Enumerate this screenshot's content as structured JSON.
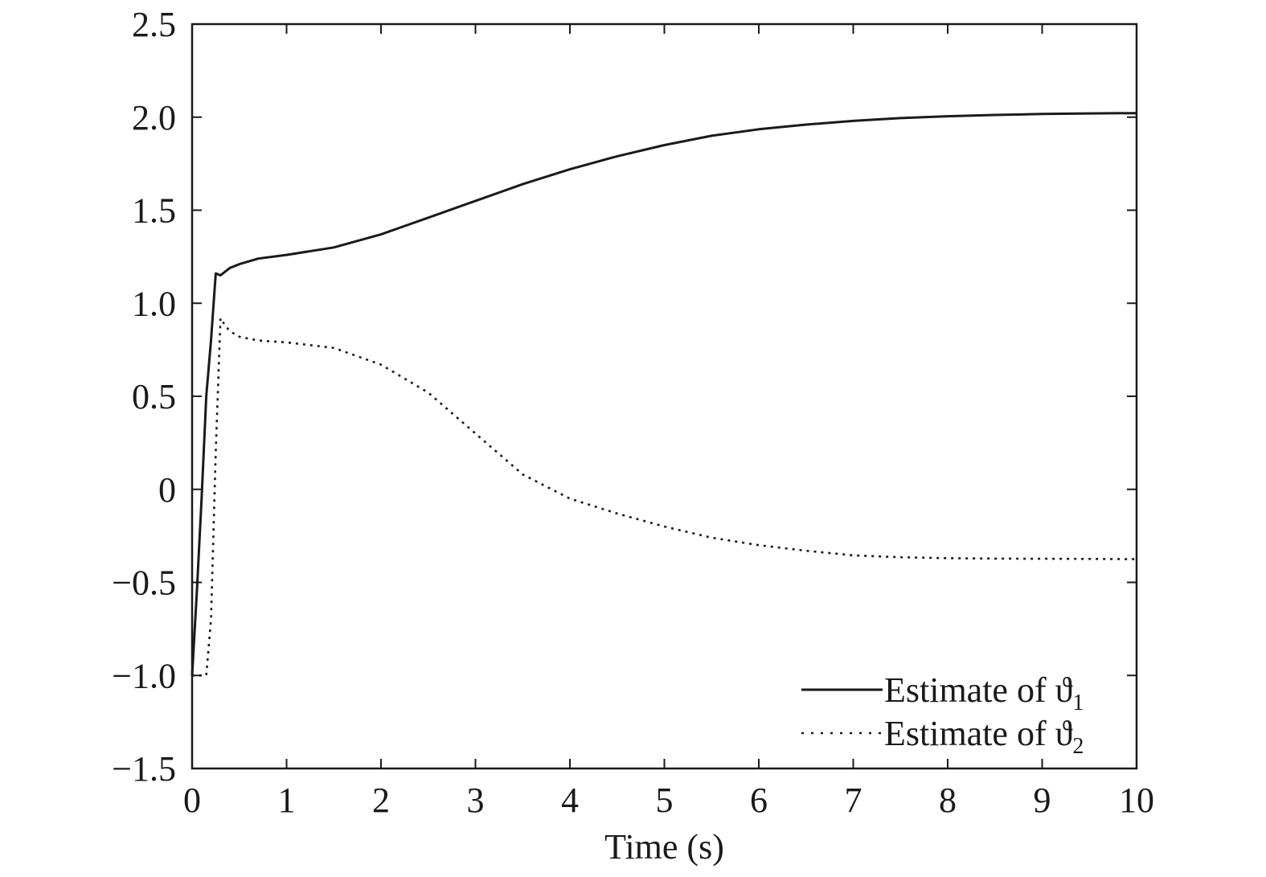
{
  "chart_data": {
    "type": "line",
    "title": "",
    "xlabel": "Time (s)",
    "ylabel": "",
    "xlim": [
      0,
      10
    ],
    "ylim": [
      -1.5,
      2.5
    ],
    "grid": false,
    "legend_position": "bottom-right",
    "x_ticks": [
      0,
      1,
      2,
      3,
      4,
      5,
      6,
      7,
      8,
      9,
      10
    ],
    "x_tick_labels": [
      "0",
      "1",
      "2",
      "3",
      "4",
      "5",
      "6",
      "7",
      "8",
      "9",
      "10"
    ],
    "y_ticks": [
      -1.5,
      -1.0,
      -0.5,
      0,
      0.5,
      1.0,
      1.5,
      2.0,
      2.5
    ],
    "y_tick_labels": [
      "−1.5",
      "−1.0",
      "−0.5",
      "0",
      "0.5",
      "1.0",
      "1.5",
      "2.0",
      "2.5"
    ],
    "series": [
      {
        "name_text": "Estimate of ϑ",
        "name_sub": "1",
        "style": "solid",
        "color": "#1a1a1a",
        "x": [
          0,
          0.05,
          0.1,
          0.15,
          0.2,
          0.25,
          0.3,
          0.4,
          0.5,
          0.7,
          1.0,
          1.5,
          2.0,
          2.5,
          3.0,
          3.5,
          4.0,
          4.5,
          5.0,
          5.5,
          6.0,
          6.5,
          7.0,
          7.5,
          8.0,
          8.5,
          9.0,
          9.5,
          10.0
        ],
        "y": [
          -1.0,
          -0.55,
          -0.05,
          0.5,
          0.8,
          1.16,
          1.15,
          1.19,
          1.21,
          1.24,
          1.26,
          1.3,
          1.37,
          1.46,
          1.55,
          1.64,
          1.72,
          1.79,
          1.85,
          1.9,
          1.935,
          1.96,
          1.98,
          1.995,
          2.005,
          2.012,
          2.017,
          2.02,
          2.022
        ]
      },
      {
        "name_text": "Estimate of ϑ",
        "name_sub": "2",
        "style": "dotted",
        "color": "#1a1a1a",
        "x": [
          0,
          0.05,
          0.1,
          0.15,
          0.2,
          0.25,
          0.3,
          0.35,
          0.4,
          0.5,
          0.7,
          1.0,
          1.5,
          2.0,
          2.5,
          3.0,
          3.5,
          4.0,
          4.5,
          5.0,
          5.5,
          6.0,
          6.5,
          7.0,
          7.5,
          8.0,
          8.5,
          9.0,
          9.5,
          10.0
        ],
        "y": [
          -1.0,
          -1.0,
          -1.0,
          -1.0,
          -0.7,
          0.2,
          0.92,
          0.88,
          0.85,
          0.82,
          0.8,
          0.79,
          0.76,
          0.67,
          0.52,
          0.3,
          0.08,
          -0.05,
          -0.13,
          -0.2,
          -0.26,
          -0.3,
          -0.33,
          -0.355,
          -0.365,
          -0.37,
          -0.372,
          -0.373,
          -0.374,
          -0.375
        ]
      }
    ]
  }
}
